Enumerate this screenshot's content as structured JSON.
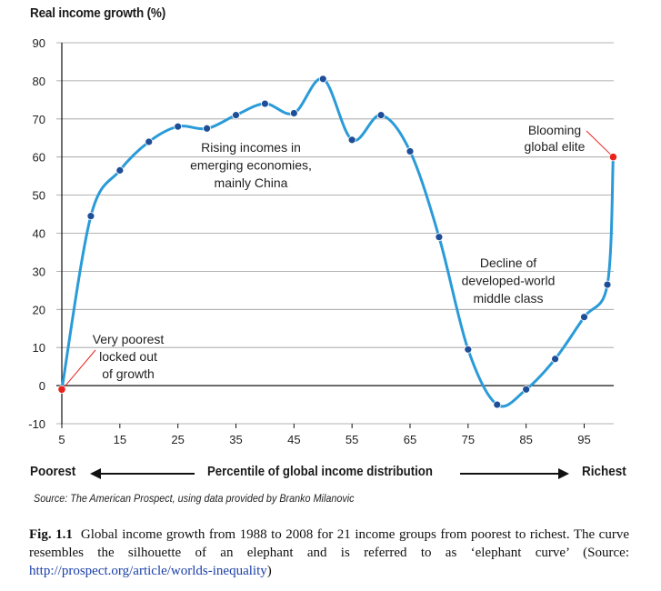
{
  "chart_data": {
    "type": "line",
    "ylabel": "Real income growth (%)",
    "xlabel": "Percentile of global income distribution",
    "x_left_label": "Poorest",
    "x_right_label": "Richest",
    "xticks": [
      5,
      15,
      25,
      35,
      45,
      55,
      65,
      75,
      85,
      95
    ],
    "yticks": [
      -10,
      0,
      10,
      20,
      30,
      40,
      50,
      60,
      70,
      80,
      90
    ],
    "xlim": [
      5,
      100
    ],
    "ylim": [
      -10,
      90
    ],
    "grid": "horizontal",
    "line_color": "#2a9bd8",
    "marker_color": "#1f4e99",
    "highlight_color": "#e8231b",
    "series": [
      {
        "x": [
          5,
          10,
          15,
          20,
          25,
          30,
          35,
          40,
          45,
          50,
          55,
          60,
          65,
          70,
          75,
          80,
          85,
          90,
          95,
          99,
          100
        ],
        "y": [
          -1,
          44.5,
          56.5,
          64,
          68,
          67.5,
          71,
          74,
          71.5,
          80.5,
          64.5,
          71,
          61.5,
          39,
          9.5,
          -5,
          -1,
          7,
          18,
          26.5,
          60
        ]
      }
    ],
    "highlighted_points": [
      0,
      20
    ],
    "annotations": [
      {
        "lines": [
          "Very poorest",
          "locked out",
          "of growth"
        ]
      },
      {
        "lines": [
          "Rising incomes in",
          "emerging economies,",
          "mainly China"
        ]
      },
      {
        "lines": [
          "Decline of",
          "developed-world",
          "middle class"
        ]
      },
      {
        "lines": [
          "Blooming",
          "global elite"
        ]
      }
    ]
  },
  "source": "Source: The American Prospect, using data provided by Branko Milanovic",
  "caption": {
    "figure_label": "Fig. 1.1",
    "text": "Global income growth from 1988 to 2008 for 21 income groups from poorest to richest. The curve resembles the silhouette of an elephant and is referred to as ‘elephant curve’ (Source: ",
    "link": "http://prospect.org/article/worlds-inequality",
    "closing": ")"
  }
}
